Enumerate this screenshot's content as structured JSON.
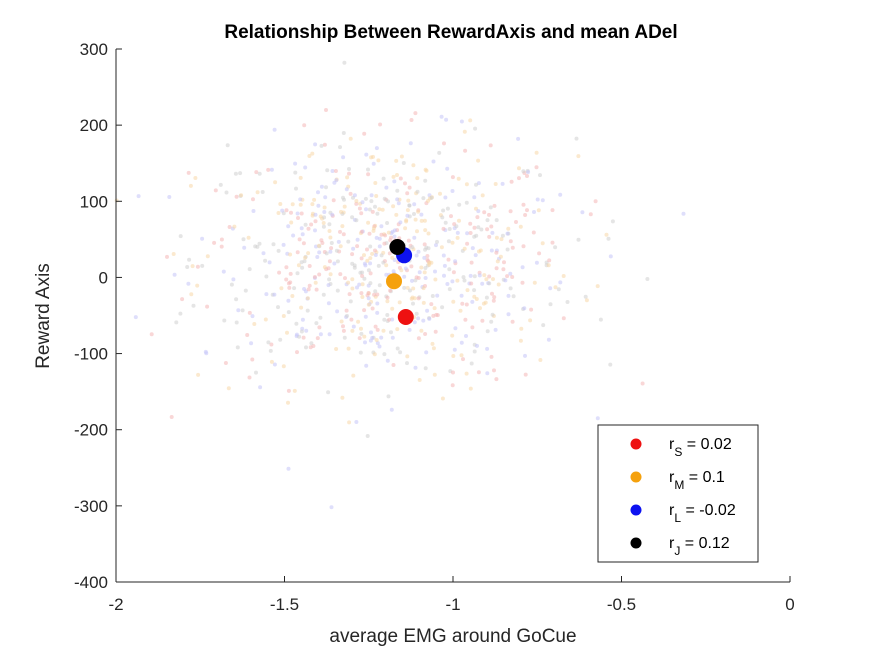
{
  "chart_data": {
    "type": "scatter",
    "title": "Relationship Between RewardAxis and mean ADel",
    "xlabel": "average EMG around GoCue",
    "ylabel": "Reward Axis",
    "xlim": [
      -2,
      0
    ],
    "ylim": [
      -400,
      300
    ],
    "xticks": [
      "-2",
      "-1.5",
      "-1",
      "-0.5",
      "0"
    ],
    "yticks": [
      "-400",
      "-300",
      "-200",
      "-100",
      "0",
      "100",
      "200",
      "300"
    ],
    "grid": false,
    "legend_position": "bottom-right",
    "background_cloud": {
      "description_of_distribution": "faint semi-transparent trial points",
      "x_center": -1.2,
      "x_spread": 0.28,
      "y_center": 20,
      "y_spread": 80,
      "colors": [
        "#f4b6b6",
        "#f7d7a8",
        "#c4c4f7",
        "#cfcfcf"
      ]
    },
    "series": [
      {
        "name": "S",
        "label_prefix": "r",
        "label_sub": "S",
        "label_suffix": " = 0.02",
        "color": "#ee1111",
        "x": -1.14,
        "y": -52
      },
      {
        "name": "M",
        "label_prefix": "r",
        "label_sub": "M",
        "label_suffix": " = 0.1",
        "color": "#f5a10d",
        "x": -1.175,
        "y": -5
      },
      {
        "name": "L",
        "label_prefix": "r",
        "label_sub": "L",
        "label_suffix": " = -0.02",
        "color": "#0d12f0",
        "x": -1.145,
        "y": 29
      },
      {
        "name": "J",
        "label_prefix": "r",
        "label_sub": "J",
        "label_suffix": " = 0.12",
        "color": "#000000",
        "x": -1.165,
        "y": 40
      }
    ]
  }
}
